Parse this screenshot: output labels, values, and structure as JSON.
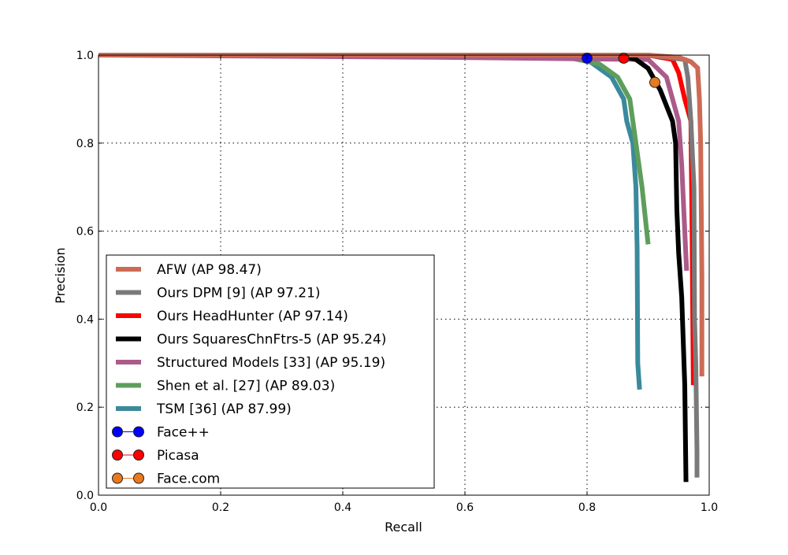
{
  "chart_data": {
    "type": "line",
    "title": "",
    "xlabel": "Recall",
    "ylabel": "Precision",
    "xlim": [
      0.0,
      1.0
    ],
    "ylim": [
      0.0,
      1.0
    ],
    "xticks": [
      "0.0",
      "0.2",
      "0.4",
      "0.6",
      "0.8",
      "1.0"
    ],
    "yticks": [
      "0.0",
      "0.2",
      "0.4",
      "0.6",
      "0.8",
      "1.0"
    ],
    "grid": true,
    "legend_position": "lower-left",
    "series": [
      {
        "name": "AFW (AP 98.47)",
        "color": "#cc6b55",
        "kind": "line",
        "x": [
          0,
          0.9,
          0.95,
          0.97,
          0.981,
          0.984,
          0.986,
          0.988,
          0.988
        ],
        "y": [
          1.0,
          1.0,
          0.995,
          0.985,
          0.971,
          0.9,
          0.8,
          0.5,
          0.27
        ]
      },
      {
        "name": "Ours DPM [9] (AP 97.21)",
        "color": "#7a7a7a",
        "kind": "line",
        "x": [
          0,
          0.9,
          0.96,
          0.965,
          0.97,
          0.975,
          0.976,
          0.978,
          0.98,
          0.98
        ],
        "y": [
          1.0,
          1.0,
          0.99,
          0.95,
          0.85,
          0.7,
          0.4,
          0.3,
          0.1,
          0.04
        ]
      },
      {
        "name": "Ours HeadHunter (AP 97.14)",
        "color": "#ff0000",
        "kind": "line",
        "x": [
          0,
          0.9,
          0.94,
          0.95,
          0.955,
          0.96,
          0.97,
          0.972,
          0.974
        ],
        "y": [
          1.0,
          1.0,
          0.99,
          0.96,
          0.93,
          0.9,
          0.85,
          0.6,
          0.25
        ]
      },
      {
        "name": "Ours SquaresChnFtrs-5 (AP 95.24)",
        "color": "#000000",
        "kind": "line",
        "x": [
          0,
          0.85,
          0.88,
          0.9,
          0.92,
          0.94,
          0.945,
          0.947,
          0.95,
          0.955,
          0.96,
          0.962
        ],
        "y": [
          1.0,
          1.0,
          0.99,
          0.97,
          0.92,
          0.85,
          0.8,
          0.65,
          0.55,
          0.45,
          0.25,
          0.03
        ]
      },
      {
        "name": "Structured Models [33] (AP 95.19)",
        "color": "#ab5b8a",
        "kind": "line",
        "x": [
          0,
          0.55,
          0.9,
          0.93,
          0.95,
          0.955,
          0.96,
          0.963
        ],
        "y": [
          1.0,
          0.995,
          0.99,
          0.95,
          0.85,
          0.75,
          0.6,
          0.51
        ]
      },
      {
        "name": "Shen et al. [27] (AP 89.03)",
        "color": "#5e9e5b",
        "kind": "line",
        "x": [
          0,
          0.75,
          0.82,
          0.85,
          0.87,
          0.88,
          0.89,
          0.9
        ],
        "y": [
          1.0,
          1.0,
          0.98,
          0.95,
          0.9,
          0.8,
          0.7,
          0.57
        ]
      },
      {
        "name": "TSM [36] (AP 87.99)",
        "color": "#3a8a9c",
        "kind": "line",
        "x": [
          0,
          0.78,
          0.8,
          0.84,
          0.86,
          0.865,
          0.875,
          0.88,
          0.882,
          0.883,
          0.886
        ],
        "y": [
          1.0,
          1.0,
          0.99,
          0.95,
          0.9,
          0.85,
          0.8,
          0.7,
          0.56,
          0.3,
          0.24
        ]
      },
      {
        "name": "Face++",
        "color": "#0000ff",
        "kind": "marker",
        "x": [
          0.8
        ],
        "y": [
          0.993
        ]
      },
      {
        "name": "Picasa",
        "color": "#ff0000",
        "kind": "marker",
        "x": [
          0.86
        ],
        "y": [
          0.993
        ]
      },
      {
        "name": "Face.com",
        "color": "#e8791e",
        "kind": "marker",
        "x": [
          0.911
        ],
        "y": [
          0.938
        ]
      }
    ]
  }
}
